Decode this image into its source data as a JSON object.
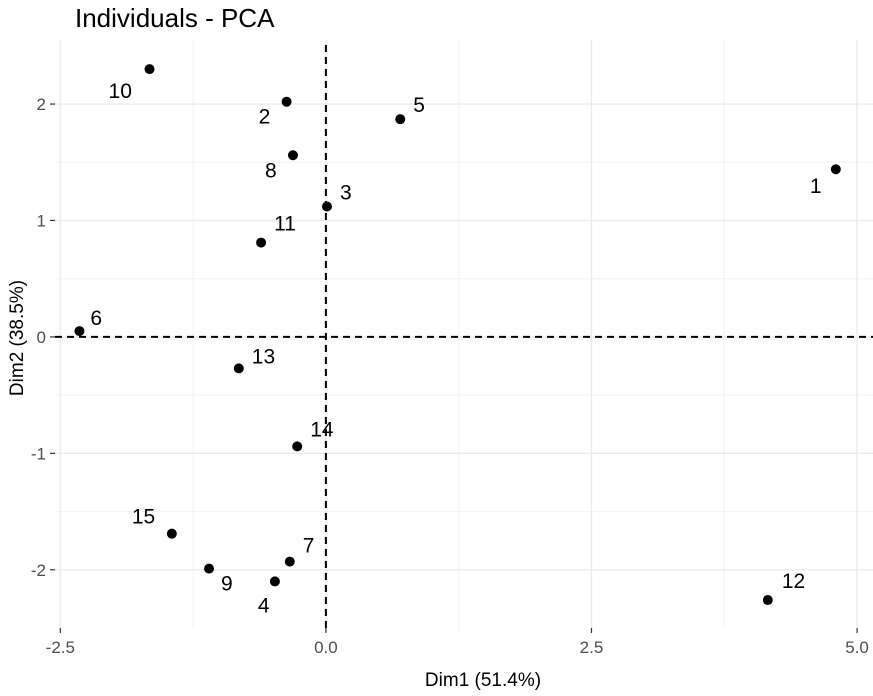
{
  "chart_data": {
    "type": "scatter",
    "title": "Individuals - PCA",
    "xlabel": "Dim1 (51.4%)",
    "ylabel": "Dim2 (38.5%)",
    "xlim": [
      -2.55,
      5.15
    ],
    "ylim": [
      -2.5,
      2.55
    ],
    "x_ticks": [
      -2.5,
      0.0,
      2.5,
      5.0
    ],
    "x_tick_labels": [
      "-2.5",
      "0.0",
      "2.5",
      "5.0"
    ],
    "y_ticks": [
      -2,
      -1,
      0,
      1,
      2
    ],
    "y_tick_labels": [
      "-2",
      "-1",
      "0",
      "1",
      "2"
    ],
    "grid": true,
    "reference_lines": {
      "x": 0,
      "y": 0,
      "style": "dashed"
    },
    "point_color": "#000000",
    "points": [
      {
        "label": "1",
        "x": 4.8,
        "y": 1.44
      },
      {
        "label": "2",
        "x": -0.37,
        "y": 2.02
      },
      {
        "label": "3",
        "x": 0.01,
        "y": 1.12
      },
      {
        "label": "4",
        "x": -0.48,
        "y": -2.1
      },
      {
        "label": "5",
        "x": 0.7,
        "y": 1.87
      },
      {
        "label": "6",
        "x": -2.32,
        "y": 0.05
      },
      {
        "label": "7",
        "x": -0.34,
        "y": -1.93
      },
      {
        "label": "8",
        "x": -0.31,
        "y": 1.56
      },
      {
        "label": "9",
        "x": -1.1,
        "y": -1.99
      },
      {
        "label": "10",
        "x": -1.66,
        "y": 2.3
      },
      {
        "label": "11",
        "x": -0.61,
        "y": 0.81
      },
      {
        "label": "12",
        "x": 4.16,
        "y": -2.26
      },
      {
        "label": "13",
        "x": -0.82,
        "y": -0.27
      },
      {
        "label": "14",
        "x": -0.27,
        "y": -0.94
      },
      {
        "label": "15",
        "x": -1.45,
        "y": -1.69
      }
    ]
  }
}
